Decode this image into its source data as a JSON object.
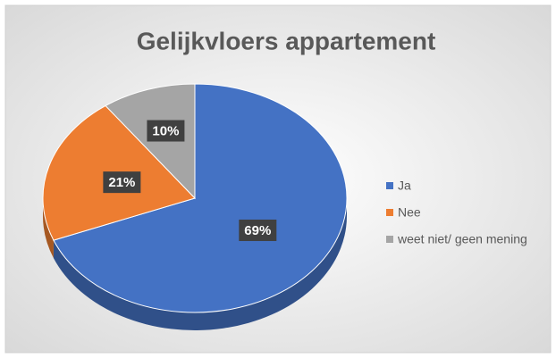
{
  "chart_data": {
    "type": "pie",
    "title": "Gelijkvloers appartement",
    "categories": [
      "Ja",
      "Nee",
      "weet niet/ geen mening"
    ],
    "values": [
      69,
      21,
      10
    ],
    "value_labels": [
      "69%",
      "21%",
      "10%"
    ],
    "colors": [
      "#4472c4",
      "#ed7d31",
      "#a5a5a5"
    ],
    "legend": "right"
  }
}
